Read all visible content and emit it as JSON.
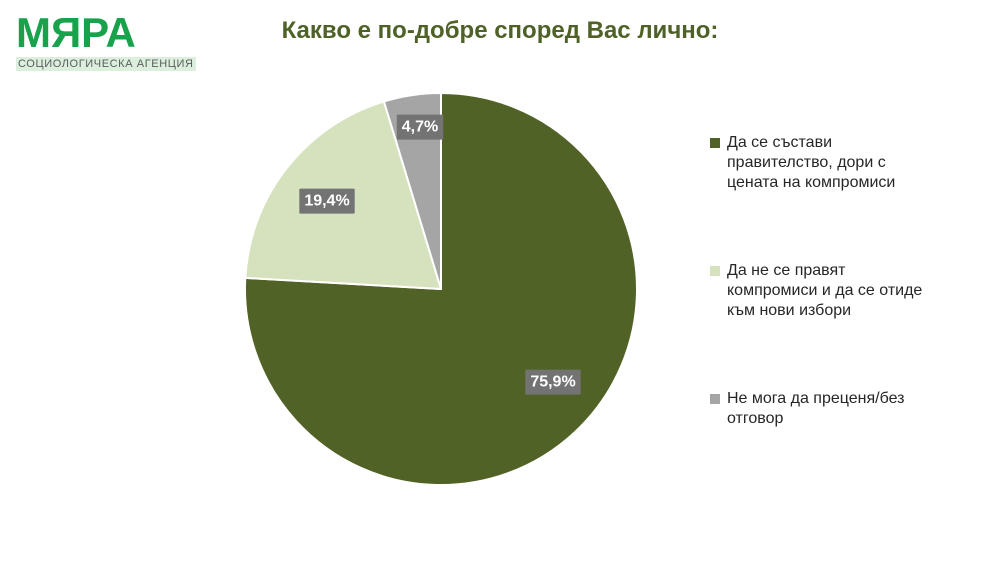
{
  "logo": {
    "name": "МЯРА",
    "subtitle": "СОЦИОЛОГИЧЕСКА АГЕНЦИЯ",
    "brand_color": "#17a24b",
    "subtitle_color": "#595c5e",
    "subtitle_band_color": "#dcefdd"
  },
  "title": {
    "text": "Какво е по-добре според Вас лично:",
    "color": "#4e6126"
  },
  "chart_data": {
    "type": "pie",
    "title": "Какво е по-добре според Вас лично:",
    "legend_position": "right",
    "start_angle_deg": 0,
    "direction": "clockwise",
    "data_label_bg": "#737373",
    "data_label_color": "#ffffff",
    "slices": [
      {
        "label": "Да се състави правителство, дори с цената на компромиси",
        "legend_lines": [
          "Да се състави",
          "правителство, дори с",
          "цената на компромиси"
        ],
        "value": 75.9,
        "display": "75,9%",
        "color": "#506226"
      },
      {
        "label": "Да не се правят компромиси и да се отиде към нови избори",
        "legend_lines": [
          "Да не се правят",
          "компромиси и да се отиде",
          "към нови избори"
        ],
        "value": 19.4,
        "display": "19,4%",
        "color": "#d6e2bd"
      },
      {
        "label": "Не мога да преценя/без отговор",
        "legend_lines": [
          "Не мога да преценя/без",
          "отговор"
        ],
        "value": 4.7,
        "display": "4,7%",
        "color": "#a5a5a5"
      }
    ]
  }
}
